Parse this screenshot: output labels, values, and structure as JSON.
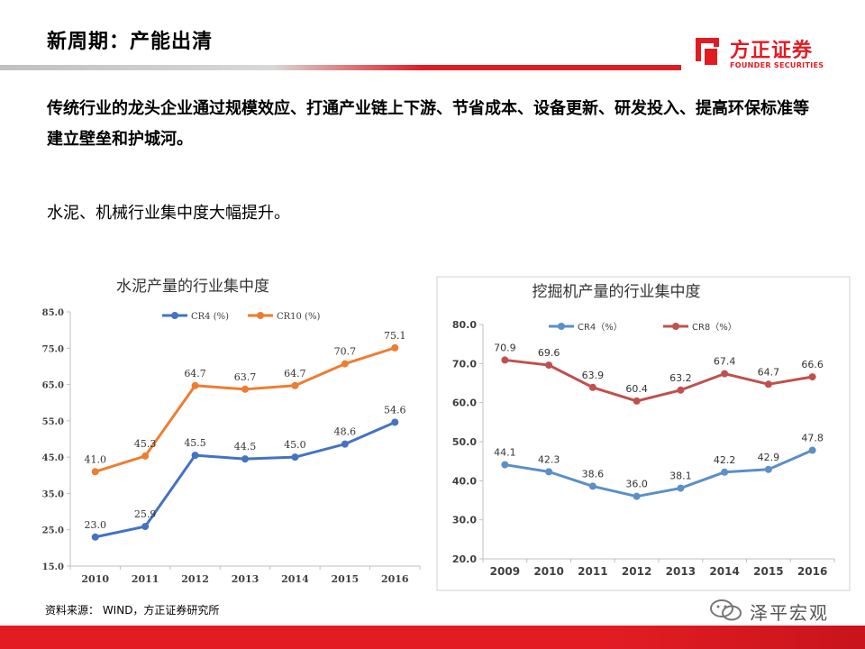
{
  "slide": {
    "title": "新周期：产能出清",
    "lead": "传统行业的龙头企业通过规模效应、打通产业链上下游、节省成本、设备更新、研发投入、提高环保标准等建立壁垒和护城河。",
    "sub": "水泥、机械行业集中度大幅提升。",
    "source": "资料来源： WIND，方正证券研究所",
    "watermark": "泽平宏观"
  },
  "logo": {
    "cn": "方正证券",
    "en": "FOUNDER SECURITIES",
    "color": "#e21b23"
  },
  "chart_data": [
    {
      "type": "line",
      "title": "水泥产量的行业集中度",
      "categories": [
        "2010",
        "2011",
        "2012",
        "2013",
        "2014",
        "2015",
        "2016"
      ],
      "yticks": [
        "15.0",
        "25.0",
        "35.0",
        "45.0",
        "55.0",
        "65.0",
        "75.0",
        "85.0"
      ],
      "ylim": [
        15,
        85
      ],
      "grid": false,
      "legend": "top",
      "series": [
        {
          "name": "CR4 (%)",
          "color": "#4472c4",
          "values": [
            23.0,
            25.9,
            45.5,
            44.5,
            45.0,
            48.6,
            54.6
          ],
          "labels": [
            "23.0",
            "25.9",
            "45.5",
            "44.5",
            "45.0",
            "48.6",
            "54.6"
          ]
        },
        {
          "name": "CR10 (%)",
          "color": "#ed7d31",
          "values": [
            41.0,
            45.3,
            64.7,
            63.7,
            64.7,
            70.7,
            75.1
          ],
          "labels": [
            "41.0",
            "45.3",
            "64.7",
            "63.7",
            "64.7",
            "70.7",
            "75.1"
          ]
        }
      ]
    },
    {
      "type": "line",
      "title": "挖掘机产量的行业集中度",
      "categories": [
        "2009",
        "2010",
        "2011",
        "2012",
        "2013",
        "2014",
        "2015",
        "2016"
      ],
      "yticks": [
        "20.0",
        "30.0",
        "40.0",
        "50.0",
        "60.0",
        "70.0",
        "80.0"
      ],
      "ylim": [
        20,
        80
      ],
      "grid": false,
      "legend": "top",
      "series": [
        {
          "name": "CR4（%）",
          "color": "#5b8fc7",
          "values": [
            44.1,
            42.3,
            38.6,
            36.0,
            38.1,
            42.2,
            42.9,
            47.8
          ],
          "labels": [
            "44.1",
            "42.3",
            "38.6",
            "36.0",
            "38.1",
            "42.2",
            "42.9",
            "47.8"
          ]
        },
        {
          "name": "CR8（%）",
          "color": "#c0504d",
          "values": [
            70.9,
            69.6,
            63.9,
            60.4,
            63.2,
            67.4,
            64.7,
            66.6
          ],
          "labels": [
            "70.9",
            "69.6",
            "63.9",
            "60.4",
            "63.2",
            "67.4",
            "64.7",
            "66.6"
          ]
        }
      ]
    }
  ]
}
